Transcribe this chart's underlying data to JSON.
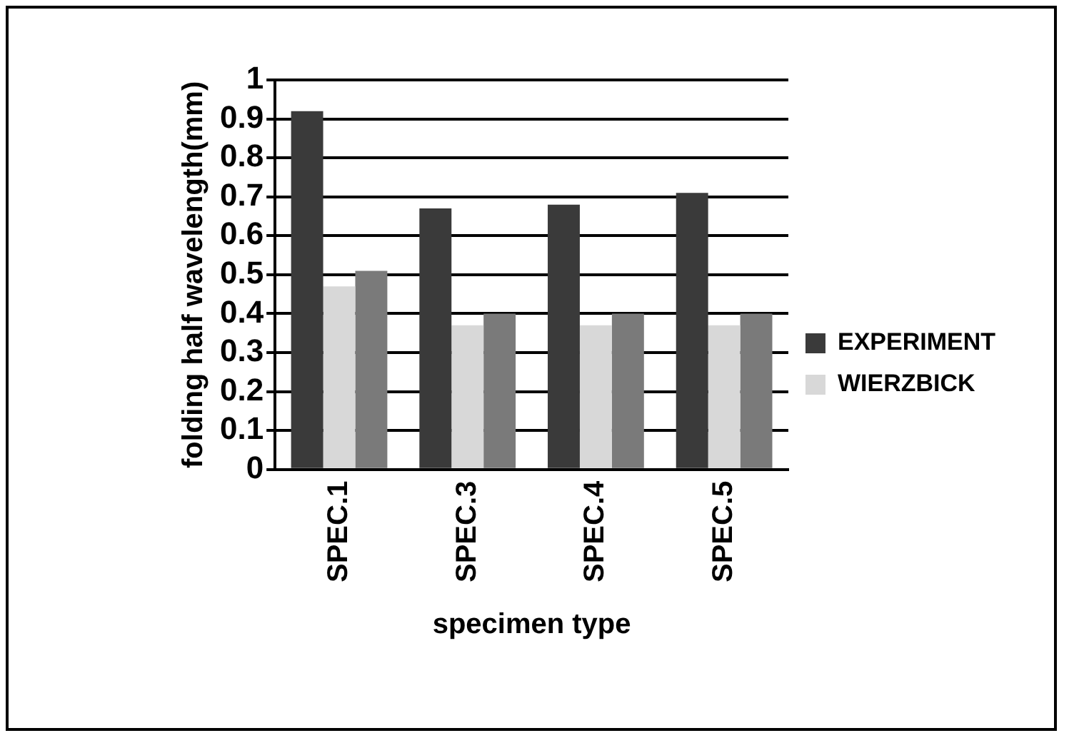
{
  "chart_data": {
    "type": "bar",
    "xlabel": "specimen type",
    "ylabel": "folding half wavelength(mm)",
    "categories": [
      "SPEC.1",
      "SPEC.3",
      "SPEC.4",
      "SPEC.5"
    ],
    "series": [
      {
        "name": "EXPERIMENT",
        "color": "#3a3a3a",
        "values": [
          0.92,
          0.67,
          0.68,
          0.71
        ]
      },
      {
        "name": "WIERZBICK",
        "color": "#d8d8d8",
        "values": [
          0.47,
          0.37,
          0.37,
          0.37
        ]
      },
      {
        "color": "#7a7a7a",
        "values": [
          0.51,
          0.4,
          0.4,
          0.4
        ]
      }
    ],
    "ylim": [
      0,
      1
    ],
    "yticks": [
      0,
      0.1,
      0.2,
      0.3,
      0.4,
      0.5,
      0.6,
      0.7,
      0.8,
      0.9,
      1
    ],
    "grid": "y",
    "legend": "right"
  }
}
